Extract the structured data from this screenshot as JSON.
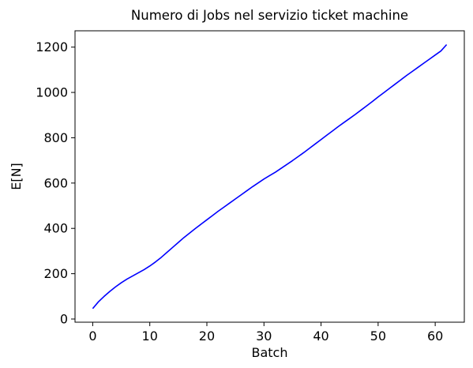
{
  "chart_data": {
    "type": "line",
    "title": "Numero di Jobs nel servizio ticket machine",
    "xlabel": "Batch",
    "ylabel": "E[N]",
    "xlim": [
      -3.1,
      65.1
    ],
    "ylim": [
      -14,
      1272
    ],
    "xticks": [
      0,
      10,
      20,
      30,
      40,
      50,
      60
    ],
    "yticks": [
      0,
      200,
      400,
      600,
      800,
      1000,
      1200
    ],
    "grid": false,
    "series": [
      {
        "color": "#0000ff",
        "x": [
          0,
          1,
          2,
          3,
          4,
          5,
          6,
          7,
          8,
          9,
          10,
          11,
          12,
          13,
          14,
          15,
          16,
          17,
          18,
          19,
          20,
          21,
          22,
          23,
          24,
          25,
          26,
          27,
          28,
          29,
          30,
          31,
          32,
          33,
          34,
          35,
          36,
          37,
          38,
          39,
          40,
          41,
          42,
          43,
          44,
          45,
          46,
          47,
          48,
          49,
          50,
          51,
          52,
          53,
          54,
          55,
          56,
          57,
          58,
          59,
          60,
          61,
          62
        ],
        "y": [
          46,
          76,
          100,
          122,
          142,
          160,
          176,
          190,
          204,
          218,
          234,
          252,
          272,
          294,
          316,
          338,
          360,
          380,
          400,
          419,
          438,
          457,
          476,
          494,
          512,
          530,
          548,
          566,
          584,
          601,
          618,
          633,
          648,
          665,
          682,
          699,
          717,
          735,
          754,
          773,
          792,
          811,
          830,
          849,
          867,
          885,
          903,
          922,
          941,
          960,
          980,
          999,
          1018,
          1037,
          1056,
          1075,
          1093,
          1111,
          1129,
          1147,
          1165,
          1183,
          1211
        ]
      }
    ]
  }
}
